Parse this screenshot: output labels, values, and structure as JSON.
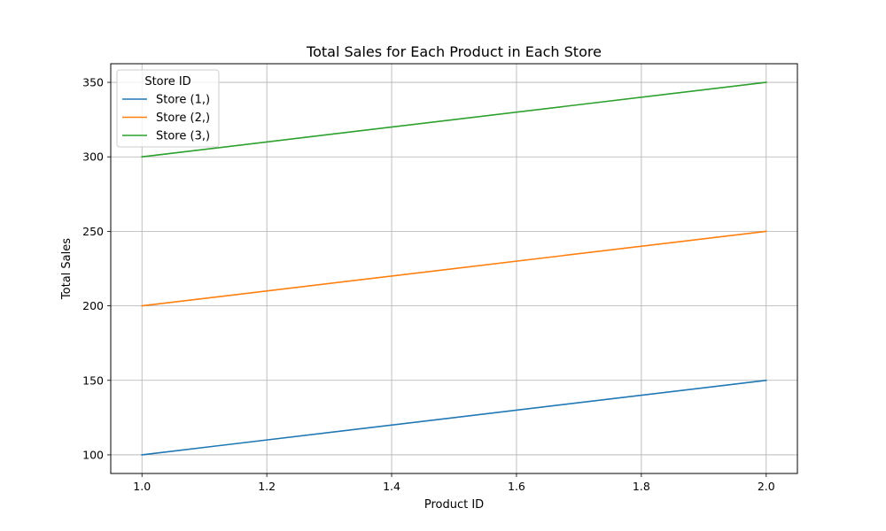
{
  "chart_data": {
    "type": "line",
    "title": "Total Sales for Each Product in Each Store",
    "xlabel": "Product ID",
    "ylabel": "Total Sales",
    "xlim": [
      0.95,
      2.05
    ],
    "ylim": [
      87.5,
      362.5
    ],
    "xticks": [
      1.0,
      1.2,
      1.4,
      1.6,
      1.8,
      2.0
    ],
    "xtick_labels": [
      "1.0",
      "1.2",
      "1.4",
      "1.6",
      "1.8",
      "2.0"
    ],
    "yticks": [
      100,
      150,
      200,
      250,
      300,
      350
    ],
    "ytick_labels": [
      "100",
      "150",
      "200",
      "250",
      "300",
      "350"
    ],
    "grid": true,
    "legend": {
      "title": "Store ID",
      "placement": "top-left"
    },
    "series": [
      {
        "name": "Store (1,)",
        "color": "#1f77b4",
        "x": [
          1.0,
          2.0
        ],
        "y": [
          100,
          150
        ]
      },
      {
        "name": "Store (2,)",
        "color": "#ff7f0e",
        "x": [
          1.0,
          2.0
        ],
        "y": [
          200,
          250
        ]
      },
      {
        "name": "Store (3,)",
        "color": "#2ca02c",
        "x": [
          1.0,
          2.0
        ],
        "y": [
          300,
          350
        ]
      }
    ]
  }
}
